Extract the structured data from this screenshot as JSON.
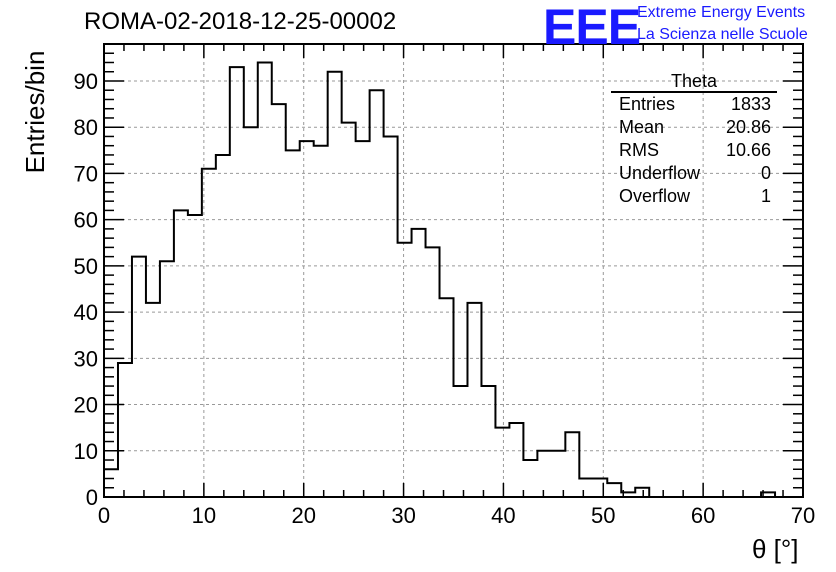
{
  "title": "ROMA-02-2018-12-25-00002",
  "logo": {
    "mark": "EEE",
    "line1": "Extreme Energy Events",
    "line2": "La Scienza nelle Scuole",
    "color": "#1a1aff"
  },
  "stats": {
    "name": "Theta",
    "rows": [
      {
        "label": "Entries",
        "value": "1833"
      },
      {
        "label": "Mean",
        "value": "20.86"
      },
      {
        "label": "RMS",
        "value": "10.66"
      },
      {
        "label": "Underflow",
        "value": "0"
      },
      {
        "label": "Overflow",
        "value": "1"
      }
    ]
  },
  "chart_data": {
    "type": "histogram",
    "xlabel": "θ [°]",
    "ylabel": "Entries/bin",
    "xlim": [
      0,
      70
    ],
    "ylim": [
      0,
      98
    ],
    "bin_width": 1.4,
    "bin_start": 0,
    "values": [
      6,
      29,
      52,
      42,
      51,
      62,
      61,
      71,
      74,
      93,
      80,
      94,
      85,
      75,
      77,
      76,
      92,
      81,
      77,
      88,
      78,
      55,
      58,
      54,
      43,
      24,
      42,
      24,
      15,
      16,
      8,
      10,
      10,
      14,
      4,
      4,
      3,
      1,
      2,
      0,
      0,
      0,
      0,
      0,
      0,
      0,
      0,
      1,
      0,
      0
    ],
    "x_ticks": [
      0,
      10,
      20,
      30,
      40,
      50,
      60,
      70
    ],
    "y_ticks": [
      0,
      10,
      20,
      30,
      40,
      50,
      60,
      70,
      80,
      90
    ],
    "grid": true
  }
}
